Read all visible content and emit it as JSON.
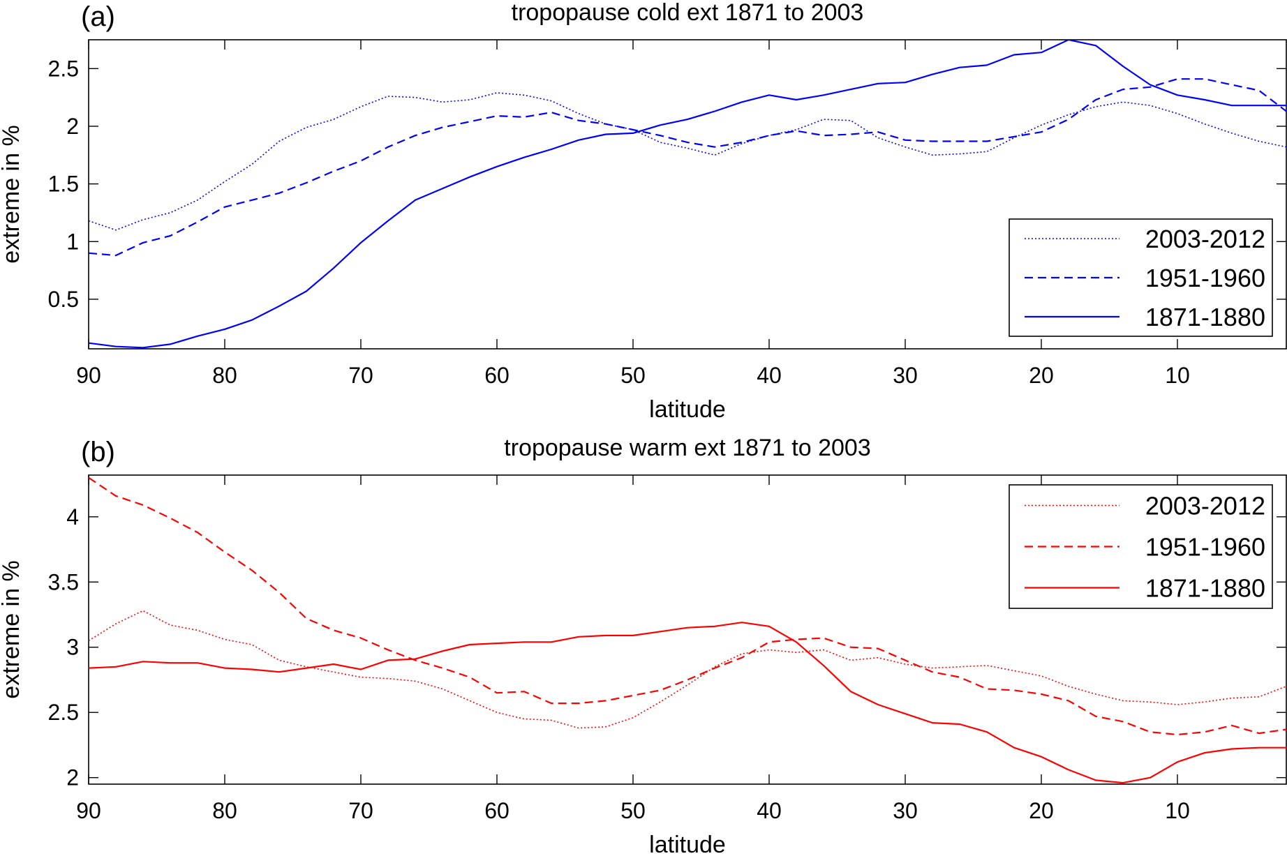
{
  "figure": {
    "line_styles": {
      "2003-2012": "dotted",
      "1951-1960": "dashed",
      "1871-1880": "solid"
    }
  },
  "chart_data": [
    {
      "type": "line",
      "panel_label": "(a)",
      "title": "tropopause cold ext 1871 to 2003",
      "xlabel": "latitude",
      "ylabel": "extreme in %",
      "xlim": [
        90,
        2
      ],
      "ylim": [
        0.07,
        2.75
      ],
      "x_reversed": true,
      "xticks": [
        90,
        80,
        70,
        60,
        50,
        40,
        30,
        20,
        10
      ],
      "yticks": [
        0.5,
        1,
        1.5,
        2,
        2.5
      ],
      "ytick_labels": [
        "0.5",
        "1",
        "1.5",
        "2",
        "2.5"
      ],
      "color": "#0000ff",
      "grid": false,
      "legend_position": "bottom-right",
      "x": [
        90,
        88,
        86,
        84,
        82,
        80,
        78,
        76,
        74,
        72,
        70,
        68,
        66,
        64,
        62,
        60,
        58,
        56,
        54,
        52,
        50,
        48,
        46,
        44,
        42,
        40,
        38,
        36,
        34,
        32,
        30,
        28,
        26,
        24,
        22,
        20,
        18,
        16,
        14,
        12,
        10,
        8,
        6,
        4,
        2
      ],
      "series": [
        {
          "name": "2003-2012",
          "style": "dotted",
          "values": [
            1.18,
            1.1,
            1.19,
            1.25,
            1.36,
            1.52,
            1.67,
            1.87,
            1.99,
            2.06,
            2.17,
            2.26,
            2.25,
            2.21,
            2.23,
            2.29,
            2.27,
            2.22,
            2.11,
            2.02,
            1.97,
            1.86,
            1.81,
            1.75,
            1.85,
            1.92,
            1.97,
            2.06,
            2.05,
            1.9,
            1.82,
            1.75,
            1.76,
            1.78,
            1.9,
            2.01,
            2.1,
            2.17,
            2.21,
            2.18,
            2.11,
            2.02,
            1.94,
            1.87,
            1.82
          ]
        },
        {
          "name": "1951-1960",
          "style": "dashed",
          "values": [
            0.9,
            0.88,
            0.99,
            1.05,
            1.17,
            1.3,
            1.36,
            1.42,
            1.51,
            1.61,
            1.7,
            1.82,
            1.92,
            1.99,
            2.04,
            2.09,
            2.08,
            2.12,
            2.05,
            2.02,
            1.97,
            1.92,
            1.86,
            1.82,
            1.86,
            1.92,
            1.96,
            1.92,
            1.93,
            1.95,
            1.88,
            1.87,
            1.87,
            1.87,
            1.91,
            1.95,
            2.06,
            2.23,
            2.32,
            2.34,
            2.41,
            2.41,
            2.36,
            2.31,
            2.13
          ]
        },
        {
          "name": "1871-1880",
          "style": "solid",
          "values": [
            0.12,
            0.09,
            0.08,
            0.11,
            0.18,
            0.24,
            0.32,
            0.44,
            0.57,
            0.77,
            0.99,
            1.18,
            1.36,
            1.46,
            1.56,
            1.65,
            1.73,
            1.8,
            1.88,
            1.93,
            1.94,
            2.01,
            2.06,
            2.13,
            2.21,
            2.27,
            2.23,
            2.27,
            2.32,
            2.37,
            2.38,
            2.45,
            2.51,
            2.53,
            2.62,
            2.64,
            2.75,
            2.7,
            2.52,
            2.36,
            2.27,
            2.23,
            2.18,
            2.18,
            2.18
          ]
        }
      ]
    },
    {
      "type": "line",
      "panel_label": "(b)",
      "title": "tropopause warm ext 1871 to 2003",
      "xlabel": "latitude",
      "ylabel": "extreme in %",
      "xlim": [
        90,
        2
      ],
      "ylim": [
        1.95,
        4.32
      ],
      "x_reversed": true,
      "xticks": [
        90,
        80,
        70,
        60,
        50,
        40,
        30,
        20,
        10
      ],
      "yticks": [
        2,
        2.5,
        3,
        3.5,
        4
      ],
      "ytick_labels": [
        "2",
        "2.5",
        "3",
        "3.5",
        "4"
      ],
      "color": "#ff0000",
      "grid": false,
      "legend_position": "top-right",
      "x": [
        90,
        88,
        86,
        84,
        82,
        80,
        78,
        76,
        74,
        72,
        70,
        68,
        66,
        64,
        62,
        60,
        58,
        56,
        54,
        52,
        50,
        48,
        46,
        44,
        42,
        40,
        38,
        36,
        34,
        32,
        30,
        28,
        26,
        24,
        22,
        20,
        18,
        16,
        14,
        12,
        10,
        8,
        6,
        4,
        2
      ],
      "series": [
        {
          "name": "2003-2012",
          "style": "dotted",
          "values": [
            3.05,
            3.18,
            3.28,
            3.17,
            3.13,
            3.06,
            3.02,
            2.9,
            2.85,
            2.81,
            2.77,
            2.76,
            2.74,
            2.68,
            2.59,
            2.5,
            2.45,
            2.44,
            2.38,
            2.39,
            2.46,
            2.58,
            2.71,
            2.85,
            2.95,
            2.98,
            2.96,
            2.98,
            2.9,
            2.92,
            2.87,
            2.84,
            2.85,
            2.86,
            2.82,
            2.78,
            2.7,
            2.64,
            2.59,
            2.58,
            2.56,
            2.58,
            2.61,
            2.62,
            2.7
          ]
        },
        {
          "name": "1951-1960",
          "style": "dashed",
          "values": [
            4.3,
            4.16,
            4.09,
            3.99,
            3.88,
            3.73,
            3.59,
            3.42,
            3.22,
            3.13,
            3.07,
            2.98,
            2.9,
            2.84,
            2.77,
            2.65,
            2.66,
            2.57,
            2.57,
            2.59,
            2.63,
            2.67,
            2.75,
            2.84,
            2.92,
            3.04,
            3.06,
            3.07,
            3.0,
            2.99,
            2.9,
            2.81,
            2.77,
            2.68,
            2.67,
            2.64,
            2.59,
            2.47,
            2.43,
            2.35,
            2.33,
            2.35,
            2.4,
            2.34,
            2.37
          ]
        },
        {
          "name": "1871-1880",
          "style": "solid",
          "values": [
            2.84,
            2.85,
            2.89,
            2.88,
            2.88,
            2.84,
            2.83,
            2.81,
            2.84,
            2.87,
            2.83,
            2.9,
            2.91,
            2.97,
            3.02,
            3.03,
            3.04,
            3.04,
            3.08,
            3.09,
            3.09,
            3.12,
            3.15,
            3.16,
            3.19,
            3.16,
            3.04,
            2.86,
            2.66,
            2.56,
            2.49,
            2.42,
            2.41,
            2.35,
            2.23,
            2.16,
            2.06,
            1.98,
            1.96,
            2.0,
            2.12,
            2.19,
            2.22,
            2.23,
            2.23
          ]
        }
      ]
    }
  ]
}
